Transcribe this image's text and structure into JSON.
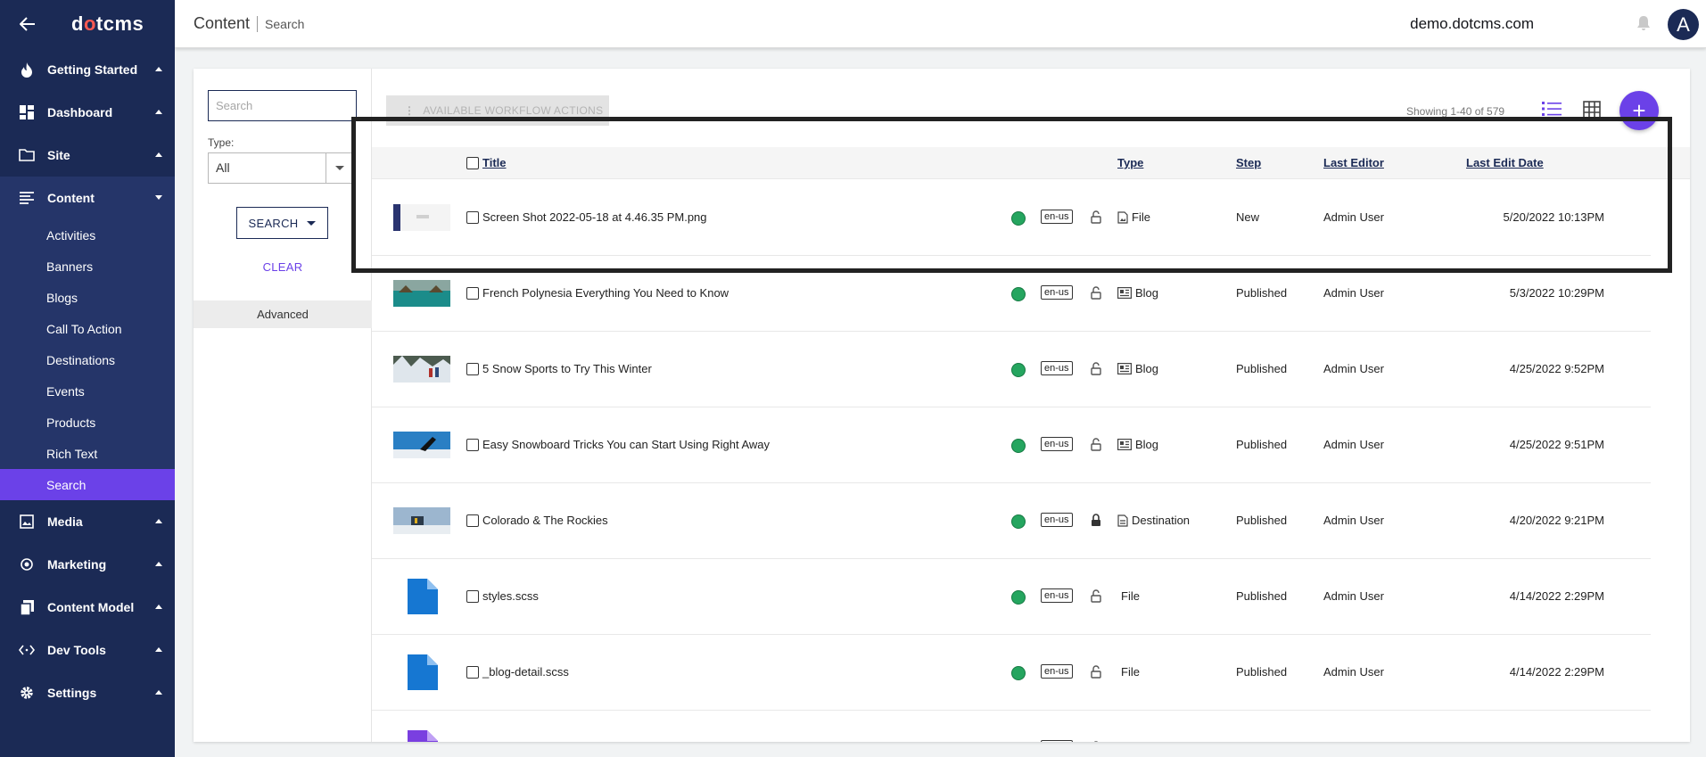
{
  "sidebar": {
    "logo": {
      "pre": "d",
      "o": "o",
      "post": "tcms"
    },
    "items": [
      {
        "label": "Getting Started",
        "icon": "fire-icon"
      },
      {
        "label": "Dashboard",
        "icon": "dashboard-icon"
      },
      {
        "label": "Site",
        "icon": "folder-icon"
      },
      {
        "label": "Content",
        "icon": "content-icon"
      },
      {
        "label": "Media",
        "icon": "media-icon"
      },
      {
        "label": "Marketing",
        "icon": "marketing-icon"
      },
      {
        "label": "Content Model",
        "icon": "content-model-icon"
      },
      {
        "label": "Dev Tools",
        "icon": "dev-tools-icon"
      },
      {
        "label": "Settings",
        "icon": "gear-icon"
      }
    ],
    "content_sub": [
      "Activities",
      "Banners",
      "Blogs",
      "Call To Action",
      "Destinations",
      "Events",
      "Products",
      "Rich Text",
      "Search"
    ]
  },
  "header": {
    "title": "Content",
    "subtitle": "Search",
    "site": "demo.dotcms.com",
    "avatar": "A"
  },
  "filters": {
    "search_placeholder": "Search",
    "type_label": "Type:",
    "type_value": "All",
    "search_button": "SEARCH",
    "clear_button": "CLEAR",
    "advanced": "Advanced"
  },
  "results": {
    "workflow_button": "AVAILABLE WORKFLOW ACTIONS",
    "showing": "Showing 1-40 of 579",
    "columns": {
      "title": "Title",
      "type": "Type",
      "step": "Step",
      "editor": "Last Editor",
      "date": "Last Edit Date"
    },
    "rows": [
      {
        "title": "Screen Shot 2022-05-18 at 4.46.35 PM.png",
        "lang": "en-us",
        "type": "File",
        "type_icon": "image-file-icon",
        "step": "New",
        "editor": "Admin User",
        "date": "5/20/2022 10:13PM",
        "thumb": "screenshot"
      },
      {
        "title": "French Polynesia Everything You Need to Know",
        "lang": "en-us",
        "type": "Blog",
        "type_icon": "blog-icon",
        "step": "Published",
        "editor": "Admin User",
        "date": "5/3/2022 10:29PM",
        "thumb": "polynesia"
      },
      {
        "title": "5 Snow Sports to Try This Winter",
        "lang": "en-us",
        "type": "Blog",
        "type_icon": "blog-icon",
        "step": "Published",
        "editor": "Admin User",
        "date": "4/25/2022 9:52PM",
        "thumb": "snow"
      },
      {
        "title": "Easy Snowboard Tricks You can Start Using Right Away",
        "lang": "en-us",
        "type": "Blog",
        "type_icon": "blog-icon",
        "step": "Published",
        "editor": "Admin User",
        "date": "4/25/2022 9:51PM",
        "thumb": "snowboard"
      },
      {
        "title": "Colorado & The Rockies",
        "lang": "en-us",
        "type": "Destination",
        "type_icon": "destination-icon",
        "step": "Published",
        "editor": "Admin User",
        "date": "4/20/2022 9:21PM",
        "thumb": "colorado"
      },
      {
        "title": "styles.scss",
        "lang": "en-us",
        "type": "File",
        "type_icon": "",
        "step": "Published",
        "editor": "Admin User",
        "date": "4/14/2022 2:29PM",
        "thumb": "file-blue"
      },
      {
        "title": "_blog-detail.scss",
        "lang": "en-us",
        "type": "File",
        "type_icon": "",
        "step": "Published",
        "editor": "Admin User",
        "date": "4/14/2022 2:29PM",
        "thumb": "file-blue"
      },
      {
        "title": "",
        "lang": "en-us",
        "type": "",
        "type_icon": "",
        "step": "",
        "editor": "",
        "date": "",
        "thumb": "file-purple"
      }
    ]
  },
  "colors": {
    "sidebar": "#1b2a55",
    "accent": "#6b41e8",
    "status": "#25a55f"
  }
}
